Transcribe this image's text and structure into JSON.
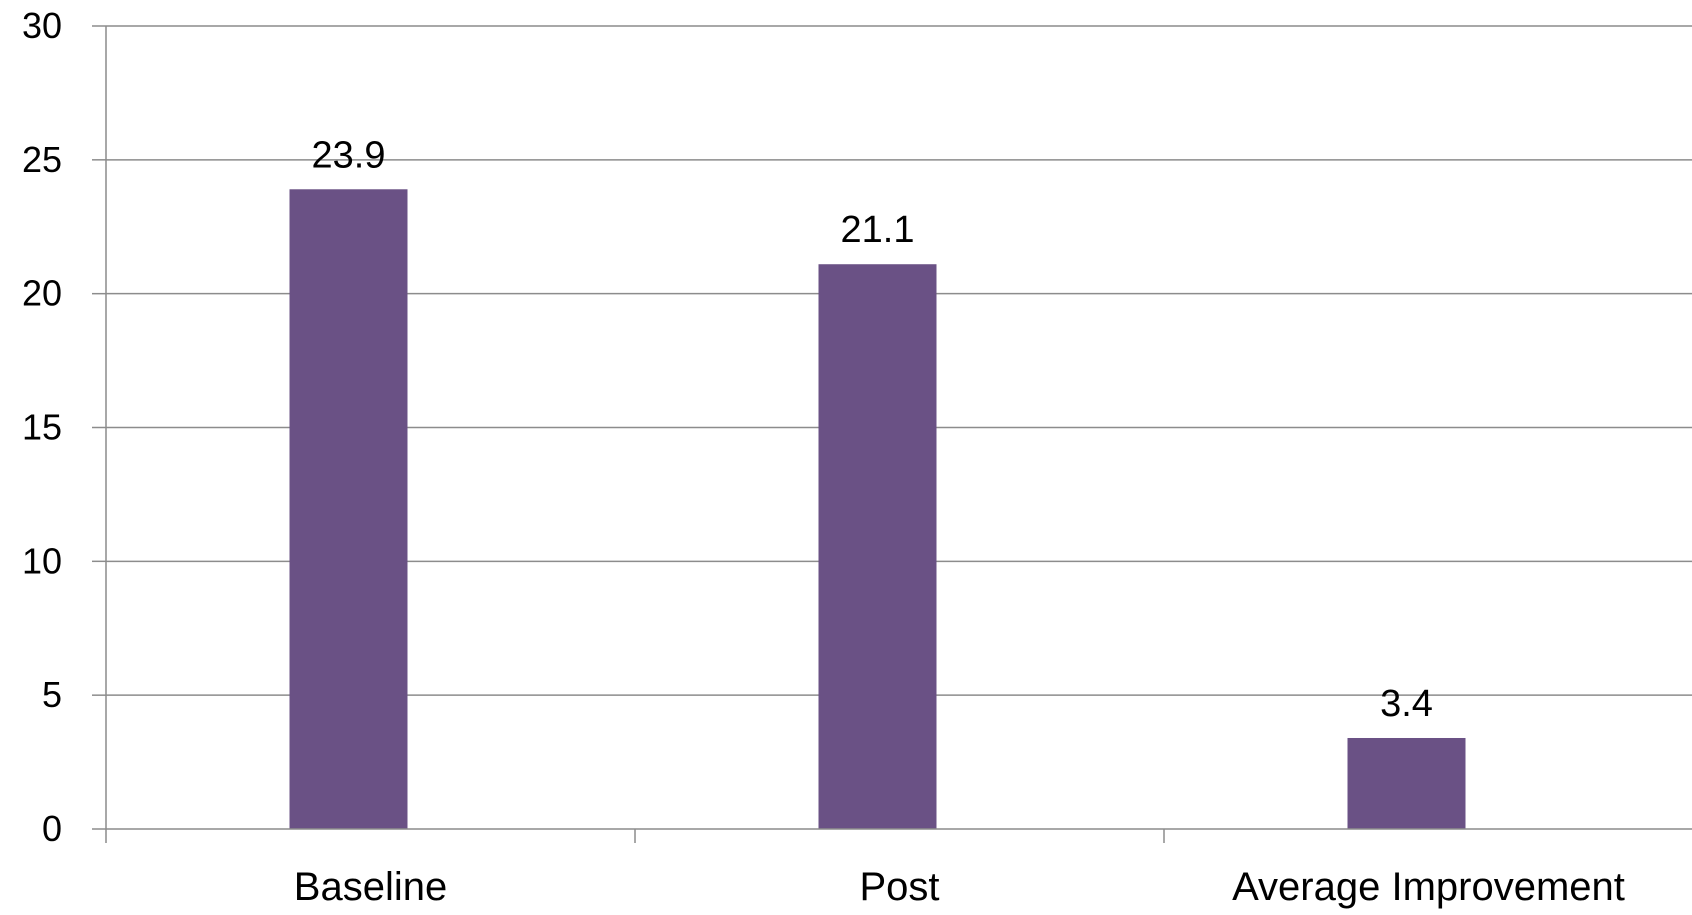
{
  "chart_data": {
    "type": "bar",
    "categories": [
      "Baseline",
      "Post",
      "Average Improvement"
    ],
    "values": [
      23.9,
      21.1,
      3.4
    ],
    "data_labels": [
      "23.9",
      "21.1",
      "3.4"
    ],
    "title": "",
    "xlabel": "",
    "ylabel": "",
    "ylim": [
      0,
      30
    ],
    "yticks": [
      0,
      5,
      10,
      15,
      20,
      25,
      30
    ],
    "ytick_labels": [
      "0",
      "5",
      "10",
      "15",
      "20",
      "25",
      "30"
    ],
    "grid": true,
    "legend": "none",
    "colors": {
      "bar": "#6a5185",
      "grid": "#8c8c8c",
      "axis": "#8c8c8c",
      "text": "#000000"
    }
  }
}
